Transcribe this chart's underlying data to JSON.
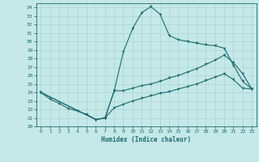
{
  "xlabel": "Humidex (Indice chaleur)",
  "background_color": "#c5e8e8",
  "grid_color": "#aad4d4",
  "line_color": "#1e6b6b",
  "xlim": [
    -0.5,
    23.5
  ],
  "ylim": [
    20,
    34.5
  ],
  "xticks": [
    0,
    1,
    2,
    3,
    4,
    5,
    6,
    7,
    8,
    9,
    10,
    11,
    12,
    13,
    14,
    15,
    16,
    17,
    18,
    19,
    20,
    21,
    22,
    23
  ],
  "yticks": [
    20,
    21,
    22,
    23,
    24,
    25,
    26,
    27,
    28,
    29,
    30,
    31,
    32,
    33,
    34
  ],
  "line1_x": [
    0,
    1,
    2,
    3,
    4,
    5,
    6,
    7,
    8,
    9,
    10,
    11,
    12,
    13,
    14,
    15,
    16,
    17,
    18,
    19,
    20,
    21,
    22,
    23
  ],
  "line1_y": [
    24.0,
    23.2,
    22.7,
    22.1,
    21.8,
    21.4,
    20.8,
    21.0,
    24.2,
    28.8,
    31.5,
    33.4,
    34.1,
    33.2,
    30.7,
    30.2,
    30.0,
    29.8,
    29.6,
    29.5,
    29.2,
    27.2,
    25.3,
    24.4
  ],
  "line1_markers": [
    0,
    1,
    2,
    3,
    4,
    5,
    6,
    7,
    8,
    9,
    10,
    11,
    12,
    13,
    14,
    15,
    16,
    17,
    18,
    19,
    20,
    21,
    22,
    23
  ],
  "line2_x": [
    0,
    6,
    7,
    8,
    9,
    10,
    11,
    12,
    13,
    14,
    15,
    16,
    17,
    18,
    19,
    20,
    21,
    22,
    23
  ],
  "line2_y": [
    24.0,
    20.8,
    21.0,
    24.2,
    24.2,
    24.5,
    24.8,
    25.0,
    25.3,
    25.7,
    26.0,
    26.4,
    26.8,
    27.3,
    27.8,
    28.4,
    27.5,
    26.2,
    24.4
  ],
  "line3_x": [
    0,
    6,
    7,
    8,
    9,
    10,
    11,
    12,
    13,
    14,
    15,
    16,
    17,
    18,
    19,
    20,
    21,
    22,
    23
  ],
  "line3_y": [
    24.0,
    20.8,
    21.0,
    22.2,
    22.6,
    23.0,
    23.3,
    23.6,
    23.9,
    24.1,
    24.4,
    24.7,
    25.0,
    25.4,
    25.8,
    26.2,
    25.5,
    24.5,
    24.4
  ]
}
